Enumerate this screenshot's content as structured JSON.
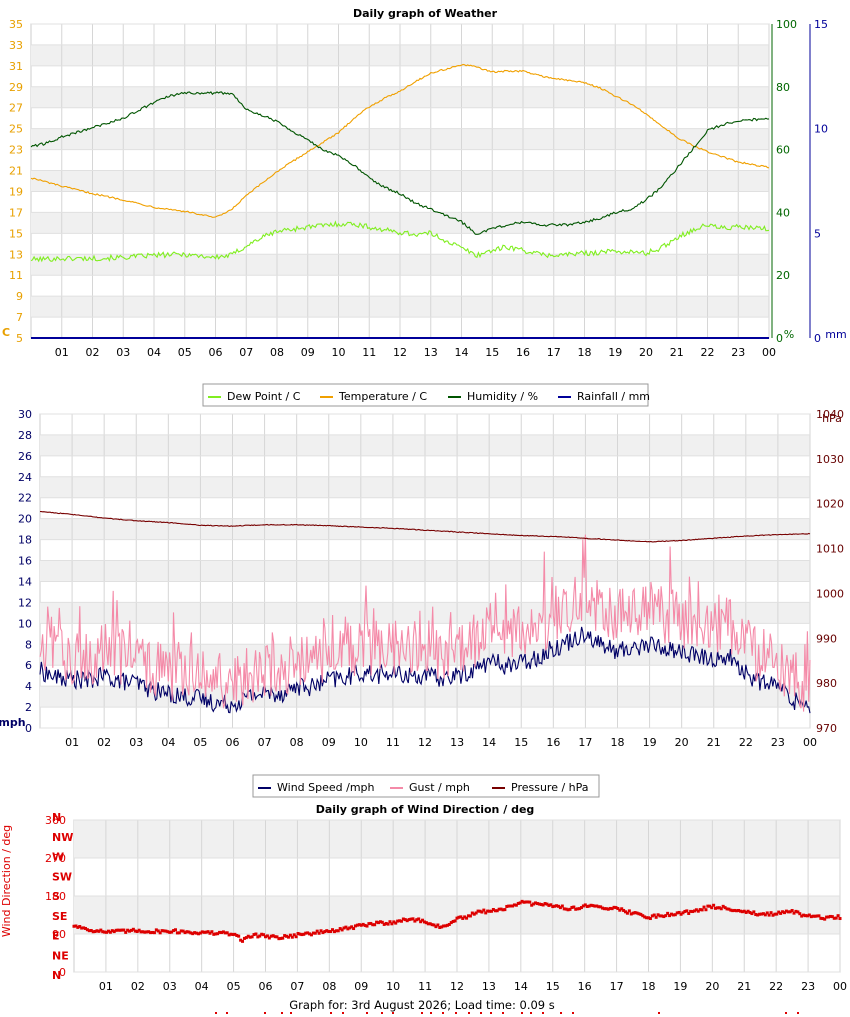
{
  "footer": "Graph for: 3rd August 2026; Load time: 0.09 s",
  "chart_data": [
    {
      "type": "line",
      "title": "Daily graph of Weather",
      "x_ticks": [
        "01",
        "02",
        "03",
        "04",
        "05",
        "06",
        "07",
        "08",
        "09",
        "10",
        "11",
        "12",
        "13",
        "14",
        "15",
        "16",
        "17",
        "18",
        "19",
        "20",
        "21",
        "22",
        "23",
        "00"
      ],
      "xlim": [
        0,
        24
      ],
      "y_left": {
        "label": "C",
        "ylim": [
          5,
          35
        ],
        "ticks": [
          5,
          7,
          9,
          11,
          13,
          15,
          17,
          19,
          21,
          23,
          25,
          27,
          29,
          31,
          33,
          35
        ],
        "color": "#e8a000"
      },
      "y_right": {
        "label": "%",
        "ylim": [
          0,
          100
        ],
        "ticks": [
          0,
          20,
          40,
          60,
          80,
          100
        ],
        "color": "#006600"
      },
      "y_right2": {
        "label": "mm",
        "ylim": [
          0,
          15
        ],
        "ticks": [
          0,
          5,
          10,
          15
        ],
        "color": "#000099"
      },
      "grid": true,
      "legend_position": "bottom",
      "series": [
        {
          "name": "Dew Point / C",
          "axis": "left",
          "color": "#80ee20",
          "x": [
            0,
            1,
            2,
            3,
            4,
            5,
            6,
            6.5,
            7,
            7.5,
            8,
            9,
            10,
            10.5,
            11,
            11.5,
            12,
            12.5,
            13,
            13.5,
            14,
            14.5,
            15,
            15.5,
            16,
            16.5,
            17,
            17.5,
            18,
            18.5,
            19,
            19.5,
            20,
            20.5,
            21,
            21.5,
            22,
            22.5,
            23,
            24
          ],
          "y": [
            12.5,
            12.6,
            12.6,
            12.7,
            12.9,
            13.0,
            12.7,
            12.9,
            13.8,
            14.6,
            15.2,
            15.6,
            15.9,
            15.9,
            15.6,
            15.3,
            15.1,
            14.9,
            15.0,
            14.3,
            13.6,
            12.9,
            13.4,
            13.7,
            13.4,
            13.0,
            12.9,
            13.0,
            13.1,
            13.2,
            13.3,
            13.2,
            13.1,
            13.6,
            14.6,
            15.3,
            15.8,
            15.5,
            15.6,
            15.4
          ]
        },
        {
          "name": "Temperature / C",
          "axis": "left",
          "color": "#f0a000",
          "x": [
            0,
            1,
            2,
            3,
            4,
            5,
            5.5,
            6,
            6.5,
            7,
            8,
            9,
            10,
            10.5,
            11,
            11.5,
            12,
            12.5,
            13,
            13.5,
            14,
            14.5,
            15,
            15.5,
            16,
            16.5,
            17,
            17.5,
            18,
            18.5,
            19,
            19.5,
            20,
            20.5,
            21,
            21.5,
            22,
            22.5,
            23,
            24
          ],
          "y": [
            20.3,
            19.5,
            18.8,
            18.2,
            17.5,
            17.1,
            16.8,
            16.5,
            17.2,
            18.6,
            20.9,
            22.8,
            24.6,
            26.0,
            27.1,
            27.9,
            28.6,
            29.5,
            30.3,
            30.7,
            31.1,
            30.9,
            30.4,
            30.5,
            30.5,
            30.1,
            29.8,
            29.6,
            29.4,
            28.9,
            28.1,
            27.4,
            26.4,
            25.3,
            24.2,
            23.4,
            22.8,
            22.3,
            21.8,
            21.3
          ]
        },
        {
          "name": "Humidity / %",
          "axis": "right",
          "color": "#005500",
          "x": [
            0,
            0.5,
            1,
            2,
            3,
            4,
            4.5,
            5,
            5.5,
            6,
            6.5,
            7,
            7.5,
            8,
            8.5,
            9,
            9.5,
            10,
            10.5,
            11,
            11.5,
            12,
            12.5,
            13,
            13.5,
            14,
            14.5,
            15,
            15.5,
            16,
            16.5,
            17,
            17.5,
            18,
            18.5,
            19,
            19.5,
            20,
            20.5,
            21,
            21.5,
            22,
            22.5,
            23,
            24
          ],
          "y": [
            61,
            62,
            64,
            67,
            70,
            75,
            77,
            78,
            78,
            78,
            78,
            73,
            71,
            69,
            66,
            63,
            60,
            58,
            55,
            51,
            48,
            46,
            43,
            41,
            39,
            37,
            33,
            35,
            36,
            37,
            36,
            36,
            36,
            37,
            38,
            40,
            41,
            44,
            48,
            54,
            60,
            66,
            68,
            69,
            70
          ]
        },
        {
          "name": "Rainfall / mm",
          "axis": "right2",
          "color": "#000099",
          "x": [
            0,
            24
          ],
          "y": [
            0,
            0
          ]
        }
      ]
    },
    {
      "type": "line",
      "title": "",
      "x_ticks": [
        "01",
        "02",
        "03",
        "04",
        "05",
        "06",
        "07",
        "08",
        "09",
        "10",
        "11",
        "12",
        "13",
        "14",
        "15",
        "16",
        "17",
        "18",
        "19",
        "20",
        "21",
        "22",
        "23",
        "00"
      ],
      "xlim": [
        0,
        24
      ],
      "y_left": {
        "label": "mph",
        "ylim": [
          0,
          30
        ],
        "ticks": [
          0,
          2,
          4,
          6,
          8,
          10,
          12,
          14,
          16,
          18,
          20,
          22,
          24,
          26,
          28,
          30
        ],
        "color": "#000066"
      },
      "y_right": {
        "label": "hPa",
        "ylim": [
          970,
          1040
        ],
        "ticks": [
          970,
          980,
          990,
          1000,
          1010,
          1020,
          1030,
          1040
        ],
        "color": "#660000"
      },
      "grid": true,
      "legend_position": "bottom",
      "series": [
        {
          "name": "Wind Speed /mph",
          "axis": "left",
          "color": "#000066",
          "x": [
            0,
            0.5,
            1,
            1.5,
            2,
            2.5,
            3,
            3.5,
            4,
            4.5,
            5,
            5.5,
            6,
            6.5,
            7,
            7.5,
            8,
            8.5,
            9,
            9.5,
            10,
            10.5,
            11,
            11.5,
            12,
            12.5,
            13,
            13.5,
            14,
            14.5,
            15,
            15.5,
            16,
            16.5,
            17,
            17.5,
            18,
            18.5,
            19,
            19.5,
            20,
            20.5,
            21,
            21.5,
            22,
            22.5,
            23,
            23.5,
            24
          ],
          "y": [
            5.5,
            4.8,
            4.7,
            4.5,
            5.0,
            4.5,
            4.3,
            3.6,
            3.3,
            3.0,
            2.8,
            2.4,
            2.3,
            3.0,
            3.4,
            3.3,
            4.0,
            3.9,
            4.6,
            4.8,
            5.3,
            5.1,
            5.2,
            5.0,
            5.0,
            4.7,
            5.0,
            5.5,
            6.4,
            6.0,
            6.2,
            6.8,
            7.6,
            8.3,
            9.2,
            7.9,
            7.3,
            7.7,
            8.0,
            7.6,
            7.3,
            6.8,
            6.6,
            6.8,
            5.2,
            4.3,
            4.1,
            2.6,
            2.3
          ]
        },
        {
          "name": "Gust / mph",
          "axis": "left",
          "color": "#f48aa8",
          "x": [
            0,
            0.5,
            1,
            1.5,
            2,
            2.5,
            3,
            3.5,
            4,
            4.5,
            5,
            5.5,
            6,
            6.5,
            7,
            7.5,
            8,
            8.5,
            9,
            9.5,
            10,
            10.5,
            11,
            11.5,
            12,
            12.5,
            13,
            13.5,
            14,
            14.5,
            15,
            15.5,
            16,
            16.5,
            17,
            17.5,
            18,
            18.5,
            19,
            19.5,
            20,
            20.5,
            21,
            21.5,
            22,
            22.5,
            23,
            23.5,
            24
          ],
          "y": [
            8.0,
            7.2,
            7.0,
            6.8,
            7.5,
            6.8,
            6.6,
            5.8,
            5.5,
            5.2,
            4.9,
            4.5,
            4.4,
            5.1,
            5.6,
            5.4,
            6.3,
            6.1,
            7.0,
            7.2,
            7.8,
            7.6,
            7.7,
            7.5,
            7.5,
            7.1,
            7.5,
            8.1,
            9.2,
            8.8,
            9.0,
            9.7,
            10.8,
            11.6,
            12.6,
            11.1,
            10.4,
            10.9,
            11.3,
            10.8,
            10.4,
            9.8,
            9.6,
            9.8,
            7.9,
            6.8,
            6.5,
            4.6,
            4.2
          ]
        },
        {
          "name": "Pressure / hPa",
          "axis": "right",
          "color": "#770000",
          "x": [
            0,
            1,
            2,
            3,
            4,
            5,
            6,
            7,
            8,
            9,
            10,
            11,
            12,
            13,
            14,
            15,
            16,
            17,
            18,
            19,
            20,
            21,
            22,
            23,
            24
          ],
          "y": [
            1018.3,
            1017.6,
            1016.8,
            1016.2,
            1015.8,
            1015.2,
            1015.0,
            1015.3,
            1015.3,
            1015.1,
            1014.8,
            1014.5,
            1014.1,
            1013.7,
            1013.3,
            1012.9,
            1012.7,
            1012.3,
            1011.9,
            1011.5,
            1011.8,
            1012.3,
            1012.8,
            1013.1,
            1013.3
          ]
        }
      ]
    },
    {
      "type": "scatter",
      "title": "Daily graph of Wind Direction / deg",
      "x_ticks": [
        "01",
        "02",
        "03",
        "04",
        "05",
        "06",
        "07",
        "08",
        "09",
        "10",
        "11",
        "12",
        "13",
        "14",
        "15",
        "16",
        "17",
        "18",
        "19",
        "20",
        "21",
        "22",
        "23",
        "00"
      ],
      "xlim": [
        0,
        24
      ],
      "y_left": {
        "label": "Wind Direction / deg",
        "ylim": [
          0,
          360
        ],
        "ticks": [
          0,
          90,
          180,
          270,
          360
        ],
        "color": "#dd0000"
      },
      "compass_labels": [
        "N",
        "NW",
        "W",
        "SW",
        "S",
        "SE",
        "E",
        "NE",
        "N"
      ],
      "grid": true,
      "series": [
        {
          "name": "Wind Direction",
          "color": "#dd0000",
          "x": [
            0,
            0.5,
            1,
            1.5,
            2,
            2.5,
            3,
            3.5,
            4,
            4.5,
            5,
            5.3,
            5.6,
            6,
            6.5,
            7,
            7.5,
            8,
            8.5,
            9,
            9.5,
            10,
            10.5,
            11,
            11.5,
            12,
            12.3,
            12.6,
            13,
            13.5,
            14,
            14.5,
            15,
            15.5,
            16,
            16.5,
            17,
            17.5,
            18,
            18.5,
            19,
            19.5,
            20,
            20.5,
            21,
            21.5,
            22,
            22.5,
            23,
            23.5,
            24
          ],
          "y": [
            110,
            100,
            95,
            96,
            98,
            96,
            97,
            95,
            93,
            92,
            90,
            75,
            88,
            85,
            82,
            88,
            92,
            97,
            102,
            110,
            115,
            118,
            125,
            120,
            105,
            125,
            130,
            140,
            145,
            150,
            165,
            160,
            158,
            150,
            155,
            155,
            150,
            140,
            130,
            135,
            140,
            145,
            155,
            150,
            145,
            135,
            138,
            142,
            132,
            128,
            130
          ]
        }
      ]
    }
  ]
}
